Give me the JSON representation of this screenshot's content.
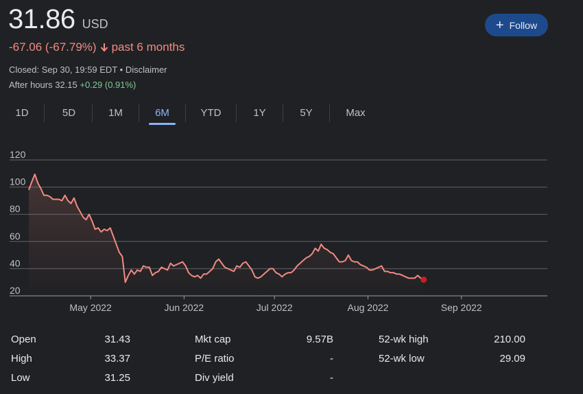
{
  "quote": {
    "price": "31.86",
    "currency": "USD",
    "change_text": "-67.06 (-67.79%)",
    "period_text": "past 6 months",
    "closed_text": "Closed: Sep 30, 19:59 EDT",
    "separator": "•",
    "disclaimer": "Disclaimer",
    "after_hours_label": "After hours 32.15",
    "after_hours_change": "+0.29 (0.91%)",
    "colors": {
      "negative": "#f28b82",
      "positive": "#81c995",
      "accent": "#8ab4f8"
    }
  },
  "follow_button": {
    "label": "Follow",
    "icon": "plus-icon"
  },
  "tabs": [
    {
      "label": "1D",
      "active": false
    },
    {
      "label": "5D",
      "active": false
    },
    {
      "label": "1M",
      "active": false
    },
    {
      "label": "6M",
      "active": true
    },
    {
      "label": "YTD",
      "active": false
    },
    {
      "label": "1Y",
      "active": false
    },
    {
      "label": "5Y",
      "active": false
    },
    {
      "label": "Max",
      "active": false
    }
  ],
  "chart_data": {
    "type": "area",
    "y_ticks": [
      120,
      100,
      80,
      60,
      40,
      20
    ],
    "ylim": [
      20,
      120
    ],
    "x_ticks": [
      {
        "label": "May 2022",
        "x": 20.5
      },
      {
        "label": "Jun 2022",
        "x": 51.5
      },
      {
        "label": "Jul 2022",
        "x": 81.5
      },
      {
        "label": "Aug 2022",
        "x": 112.5
      },
      {
        "label": "Sep 2022",
        "x": 143.5
      }
    ],
    "xlim": [
      0,
      172
    ],
    "grid": true,
    "line_color": "#f28b82",
    "points": [
      [
        0,
        98
      ],
      [
        1,
        104
      ],
      [
        2,
        109.5
      ],
      [
        3,
        103
      ],
      [
        4,
        99
      ],
      [
        5,
        94
      ],
      [
        6,
        94
      ],
      [
        7,
        93
      ],
      [
        8,
        91
      ],
      [
        9,
        91
      ],
      [
        10,
        91
      ],
      [
        11,
        90
      ],
      [
        12,
        94
      ],
      [
        13,
        90
      ],
      [
        14,
        88
      ],
      [
        15,
        92
      ],
      [
        16,
        86
      ],
      [
        17,
        82
      ],
      [
        18,
        78
      ],
      [
        19,
        76
      ],
      [
        20,
        80
      ],
      [
        21,
        75
      ],
      [
        22,
        69
      ],
      [
        23,
        70
      ],
      [
        24,
        67
      ],
      [
        25,
        69
      ],
      [
        26,
        68
      ],
      [
        27,
        70
      ],
      [
        28,
        64
      ],
      [
        29,
        58
      ],
      [
        30,
        52
      ],
      [
        31,
        49
      ],
      [
        32,
        30
      ],
      [
        33,
        35
      ],
      [
        34,
        39
      ],
      [
        35,
        36
      ],
      [
        36,
        39
      ],
      [
        37,
        38
      ],
      [
        38,
        42
      ],
      [
        39,
        41
      ],
      [
        40,
        41
      ],
      [
        41,
        35
      ],
      [
        42,
        37
      ],
      [
        43,
        38
      ],
      [
        44,
        41
      ],
      [
        45,
        40
      ],
      [
        46,
        39
      ],
      [
        47,
        44
      ],
      [
        48,
        42
      ],
      [
        49,
        43
      ],
      [
        50,
        44
      ],
      [
        51,
        45
      ],
      [
        52,
        42
      ],
      [
        53,
        37
      ],
      [
        54,
        35
      ],
      [
        55,
        34
      ],
      [
        56,
        35
      ],
      [
        57,
        33
      ],
      [
        58,
        36
      ],
      [
        59,
        36
      ],
      [
        60,
        38
      ],
      [
        61,
        40
      ],
      [
        62,
        45
      ],
      [
        63,
        47
      ],
      [
        64,
        44
      ],
      [
        65,
        41
      ],
      [
        66,
        40
      ],
      [
        67,
        39
      ],
      [
        68,
        38
      ],
      [
        69,
        42
      ],
      [
        70,
        41
      ],
      [
        71,
        44
      ],
      [
        72,
        45
      ],
      [
        73,
        42
      ],
      [
        74,
        39
      ],
      [
        75,
        34
      ],
      [
        76,
        33
      ],
      [
        77,
        34
      ],
      [
        78,
        36
      ],
      [
        79,
        38
      ],
      [
        80,
        40
      ],
      [
        81,
        40
      ],
      [
        82,
        37
      ],
      [
        83,
        36
      ],
      [
        84,
        34
      ],
      [
        85,
        36
      ],
      [
        86,
        37
      ],
      [
        87,
        37
      ],
      [
        88,
        39
      ],
      [
        89,
        42
      ],
      [
        90,
        44
      ],
      [
        91,
        46
      ],
      [
        92,
        48
      ],
      [
        93,
        49
      ],
      [
        94,
        51
      ],
      [
        95,
        55
      ],
      [
        96,
        53
      ],
      [
        97,
        58
      ],
      [
        98,
        55
      ],
      [
        99,
        54
      ],
      [
        100,
        52
      ],
      [
        101,
        51
      ],
      [
        102,
        48
      ],
      [
        103,
        45
      ],
      [
        104,
        45
      ],
      [
        105,
        46
      ],
      [
        106,
        50
      ],
      [
        107,
        46
      ],
      [
        108,
        45
      ],
      [
        109,
        45
      ],
      [
        110,
        43
      ],
      [
        111,
        42
      ],
      [
        112,
        41
      ],
      [
        113,
        39
      ],
      [
        114,
        39
      ],
      [
        115,
        40
      ],
      [
        116,
        41
      ],
      [
        117,
        42
      ],
      [
        118,
        38
      ],
      [
        119,
        38
      ],
      [
        120,
        37
      ],
      [
        121,
        37
      ],
      [
        122,
        36
      ],
      [
        123,
        36
      ],
      [
        124,
        35
      ],
      [
        125,
        34
      ],
      [
        126,
        33
      ],
      [
        127,
        33
      ],
      [
        128,
        33
      ],
      [
        129,
        35
      ],
      [
        130,
        33
      ],
      [
        131,
        31.9
      ]
    ],
    "end_point": [
      131,
      31.9
    ]
  },
  "stats": [
    {
      "label": "Open",
      "value": "31.43"
    },
    {
      "label": "High",
      "value": "33.37"
    },
    {
      "label": "Low",
      "value": "31.25"
    },
    {
      "label": "Mkt cap",
      "value": "9.57B"
    },
    {
      "label": "P/E ratio",
      "value": "-"
    },
    {
      "label": "Div yield",
      "value": "-"
    },
    {
      "label": "52-wk high",
      "value": "210.00"
    },
    {
      "label": "52-wk low",
      "value": "29.09"
    }
  ]
}
